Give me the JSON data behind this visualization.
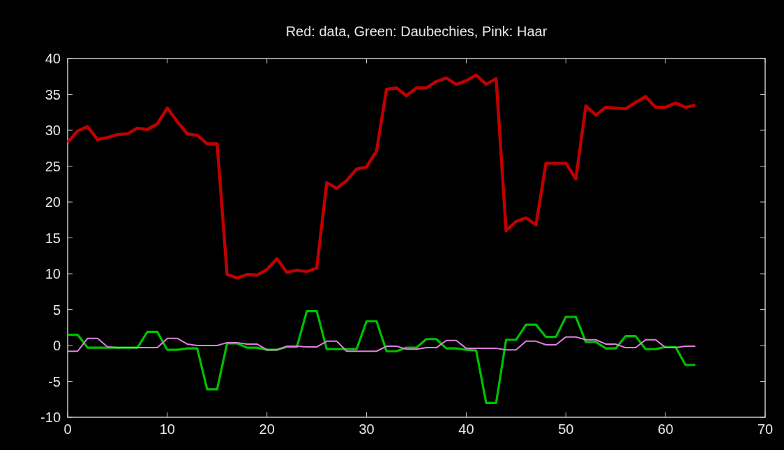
{
  "chart_data": {
    "type": "line",
    "title": "Red: data, Green: Daubechies, Pink: Haar",
    "x": [
      0,
      1,
      2,
      3,
      4,
      5,
      6,
      7,
      8,
      9,
      10,
      11,
      12,
      13,
      14,
      15,
      16,
      17,
      18,
      19,
      20,
      21,
      22,
      23,
      24,
      25,
      26,
      27,
      28,
      29,
      30,
      31,
      32,
      33,
      34,
      35,
      36,
      37,
      38,
      39,
      40,
      41,
      42,
      43,
      44,
      45,
      46,
      47,
      48,
      49,
      50,
      51,
      52,
      53,
      54,
      55,
      56,
      57,
      58,
      59,
      60,
      61,
      62,
      63
    ],
    "series": [
      {
        "color": "#c00000",
        "values": [
          28.3,
          29.9,
          30.5,
          28.7,
          29.0,
          29.4,
          29.5,
          30.3,
          30.1,
          30.9,
          33.1,
          31.2,
          29.5,
          29.3,
          28.1,
          28.1,
          9.9,
          9.4,
          9.9,
          9.8,
          10.6,
          12.1,
          10.2,
          10.5,
          10.3,
          10.8,
          22.7,
          21.9,
          23.0,
          24.6,
          24.9,
          27.1,
          35.7,
          35.9,
          34.8,
          35.9,
          35.9,
          36.8,
          37.3,
          36.4,
          36.9,
          37.7,
          36.4,
          37.2,
          16.0,
          17.3,
          17.8,
          16.8,
          25.4,
          25.4,
          25.4,
          23.2,
          33.4,
          32.1,
          33.2,
          33.1,
          33.0,
          33.9,
          34.7,
          33.2,
          33.2,
          33.8,
          33.2,
          33.5
        ]
      },
      {
        "color": "#00c000",
        "values": [
          1.5,
          1.5,
          -0.3,
          -0.3,
          -0.3,
          -0.3,
          -0.3,
          -0.3,
          1.9,
          1.9,
          -0.6,
          -0.6,
          -0.4,
          -0.4,
          -6.1,
          -6.1,
          0.3,
          0.3,
          -0.3,
          -0.3,
          -0.6,
          -0.6,
          -0.2,
          -0.2,
          4.8,
          4.8,
          -0.5,
          -0.5,
          -0.5,
          -0.5,
          3.4,
          3.4,
          -0.8,
          -0.8,
          -0.3,
          -0.3,
          0.9,
          0.9,
          -0.4,
          -0.4,
          -0.6,
          -0.7,
          -8.0,
          -8.0,
          0.8,
          0.8,
          2.9,
          2.9,
          1.2,
          1.2,
          4.0,
          4.0,
          0.5,
          0.5,
          -0.4,
          -0.4,
          1.3,
          1.3,
          -0.5,
          -0.5,
          -0.2,
          -0.2,
          -2.7,
          -2.7
        ]
      },
      {
        "color": "#e080e0",
        "values": [
          -0.8,
          -0.8,
          1.0,
          1.0,
          -0.2,
          -0.3,
          -0.3,
          -0.3,
          -0.3,
          -0.3,
          1.0,
          1.0,
          0.2,
          0.0,
          0.0,
          0.0,
          0.4,
          0.4,
          0.2,
          0.2,
          -0.6,
          -0.6,
          -0.1,
          -0.1,
          -0.2,
          -0.2,
          0.6,
          0.6,
          -0.8,
          -0.8,
          -0.8,
          -0.8,
          -0.1,
          -0.1,
          -0.5,
          -0.5,
          -0.3,
          -0.3,
          0.7,
          0.7,
          -0.4,
          -0.4,
          -0.4,
          -0.4,
          -0.6,
          -0.6,
          0.6,
          0.6,
          0.1,
          0.1,
          1.2,
          1.2,
          0.8,
          0.8,
          0.2,
          0.2,
          -0.3,
          -0.3,
          0.8,
          0.8,
          -0.3,
          -0.3,
          -0.1,
          -0.1
        ]
      }
    ],
    "xlim": [
      0,
      70
    ],
    "xticks": [
      0,
      10,
      20,
      30,
      40,
      50,
      60,
      70
    ],
    "ylim": [
      -10,
      40
    ],
    "yticks": [
      -10,
      -5,
      0,
      5,
      10,
      15,
      20,
      25,
      30,
      35,
      40
    ],
    "grid": false
  }
}
